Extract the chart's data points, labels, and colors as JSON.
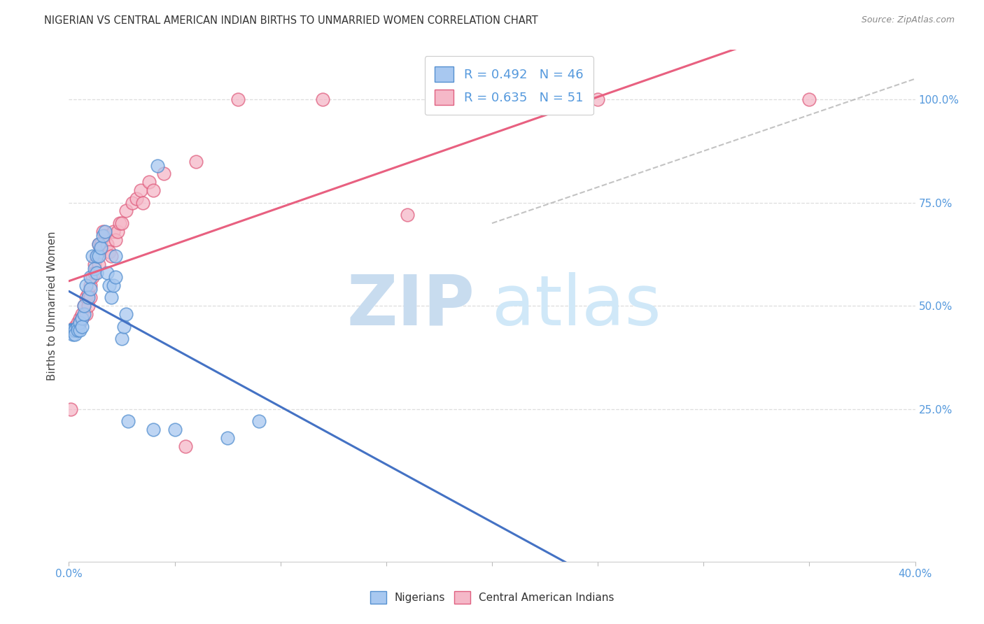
{
  "title": "NIGERIAN VS CENTRAL AMERICAN INDIAN BIRTHS TO UNMARRIED WOMEN CORRELATION CHART",
  "source": "Source: ZipAtlas.com",
  "ylabel": "Births to Unmarried Women",
  "legend_label1": "Nigerians",
  "legend_label2": "Central American Indians",
  "r1": 0.492,
  "n1": 46,
  "r2": 0.635,
  "n2": 51,
  "color_blue": "#A8C8F0",
  "color_pink": "#F5B8C8",
  "edge_blue": "#5590D0",
  "edge_pink": "#E06080",
  "trendline_blue": "#4472C4",
  "trendline_pink": "#E86080",
  "refline_color": "#AAAAAA",
  "watermark_text": "ZIPatlas",
  "watermark_color": "#D8EEFF",
  "background": "#FFFFFF",
  "grid_color": "#DDDDDD",
  "tick_color": "#5599DD",
  "nigerian_x": [
    0.001,
    0.001,
    0.001,
    0.001,
    0.002,
    0.002,
    0.002,
    0.003,
    0.003,
    0.003,
    0.004,
    0.004,
    0.005,
    0.005,
    0.006,
    0.006,
    0.007,
    0.007,
    0.008,
    0.009,
    0.01,
    0.01,
    0.011,
    0.012,
    0.013,
    0.013,
    0.014,
    0.014,
    0.015,
    0.016,
    0.017,
    0.018,
    0.019,
    0.02,
    0.021,
    0.022,
    0.022,
    0.025,
    0.026,
    0.027,
    0.028,
    0.04,
    0.042,
    0.05,
    0.075,
    0.09
  ],
  "nigerian_y": [
    0.44,
    0.44,
    0.44,
    0.44,
    0.44,
    0.44,
    0.43,
    0.44,
    0.44,
    0.43,
    0.45,
    0.44,
    0.46,
    0.44,
    0.47,
    0.45,
    0.48,
    0.5,
    0.55,
    0.52,
    0.57,
    0.54,
    0.62,
    0.59,
    0.58,
    0.62,
    0.62,
    0.65,
    0.64,
    0.67,
    0.68,
    0.58,
    0.55,
    0.52,
    0.55,
    0.57,
    0.62,
    0.42,
    0.45,
    0.48,
    0.22,
    0.2,
    0.84,
    0.2,
    0.18,
    0.22
  ],
  "central_x": [
    0.001,
    0.001,
    0.001,
    0.002,
    0.002,
    0.003,
    0.003,
    0.004,
    0.005,
    0.005,
    0.006,
    0.006,
    0.007,
    0.008,
    0.008,
    0.009,
    0.009,
    0.01,
    0.01,
    0.011,
    0.012,
    0.012,
    0.013,
    0.014,
    0.014,
    0.015,
    0.016,
    0.017,
    0.018,
    0.019,
    0.02,
    0.021,
    0.022,
    0.023,
    0.024,
    0.025,
    0.027,
    0.03,
    0.032,
    0.034,
    0.035,
    0.038,
    0.04,
    0.045,
    0.055,
    0.06,
    0.08,
    0.12,
    0.16,
    0.25,
    0.35
  ],
  "central_y": [
    0.44,
    0.44,
    0.25,
    0.44,
    0.44,
    0.45,
    0.44,
    0.46,
    0.47,
    0.46,
    0.48,
    0.47,
    0.5,
    0.52,
    0.48,
    0.53,
    0.5,
    0.55,
    0.52,
    0.57,
    0.6,
    0.58,
    0.62,
    0.65,
    0.6,
    0.65,
    0.68,
    0.67,
    0.65,
    0.63,
    0.62,
    0.68,
    0.66,
    0.68,
    0.7,
    0.7,
    0.73,
    0.75,
    0.76,
    0.78,
    0.75,
    0.8,
    0.78,
    0.82,
    0.16,
    0.85,
    1.0,
    1.0,
    0.72,
    1.0,
    1.0
  ],
  "xlim": [
    0.0,
    0.4
  ],
  "ylim": [
    0.0,
    1.1
  ],
  "xticks": [
    0.0,
    0.05,
    0.1,
    0.15,
    0.2,
    0.25,
    0.3,
    0.35,
    0.4
  ],
  "yticks": [
    0.25,
    0.5,
    0.75,
    1.0
  ],
  "ytick_labels": [
    "25.0%",
    "50.0%",
    "75.0%",
    "100.0%"
  ]
}
